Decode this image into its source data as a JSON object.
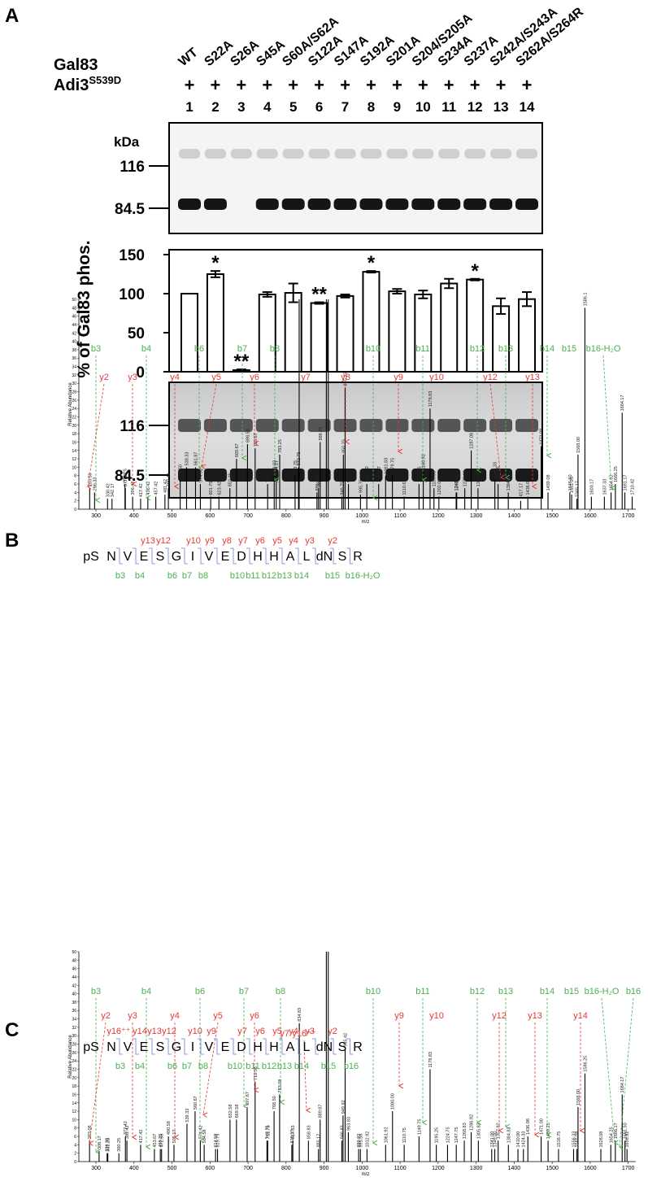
{
  "panel_a": {
    "label": "A",
    "gal83_label": "Gal83",
    "adi3_label": "Adi3",
    "adi3_superscript": "S539D",
    "mutants": [
      "WT",
      "S22A",
      "S26A",
      "S45A",
      "S60A/S62A",
      "S122A",
      "S147A",
      "S192A",
      "S201A",
      "S204/S205A",
      "S234A",
      "S237A",
      "S242A/S243A",
      "S262A/S264R"
    ],
    "adi3_presence": [
      "+",
      "+",
      "+",
      "+",
      "+",
      "+",
      "+",
      "+",
      "+",
      "+",
      "+",
      "+",
      "+",
      "+"
    ],
    "lane_numbers": [
      1,
      2,
      3,
      4,
      5,
      6,
      7,
      8,
      9,
      10,
      11,
      12,
      13,
      14
    ],
    "blot": {
      "unit": "kDa",
      "markers": [
        116,
        84.5
      ]
    },
    "gel": {
      "markers": [
        116,
        84.5
      ]
    }
  },
  "panel_b": {
    "label": "B",
    "sequence": [
      "pS",
      "N",
      "V",
      "E",
      "S",
      "G",
      "I",
      "V",
      "E",
      "D",
      "H",
      "H",
      "A",
      "L",
      "dN",
      "S",
      "R"
    ],
    "y_ions": [
      "y13",
      "y12",
      "y10",
      "y9",
      "y8",
      "y7",
      "y6",
      "y5",
      "y4",
      "y3",
      "y2"
    ],
    "b_ions": [
      "b3",
      "b4",
      "b6",
      "b7",
      "b8",
      "b10",
      "b11",
      "b12",
      "b13",
      "b14",
      "b15",
      "b16-H₂O"
    ]
  },
  "panel_c": {
    "label": "C",
    "sequence": [
      "pS",
      "N",
      "V",
      "E",
      "S",
      "G",
      "I",
      "V",
      "E",
      "D",
      "H",
      "H",
      "A",
      "L",
      "dN",
      "S",
      "R"
    ],
    "y_ions": [
      "y16⁺⁺",
      "y14",
      "y13",
      "y12",
      "y10",
      "y9",
      "y7",
      "y6",
      "y5",
      "y4",
      "y3",
      "y2"
    ],
    "b_ions": [
      "b3",
      "b4",
      "b6",
      "b7",
      "b8",
      "b10",
      "b11",
      "b12",
      "b13",
      "b14",
      "b15",
      "b16"
    ]
  },
  "chart_data": [
    {
      "type": "bar",
      "ylabel": "% of Gal83 phos.",
      "values": [
        100,
        125,
        2,
        99,
        101,
        88,
        97,
        128,
        103,
        99,
        113,
        118,
        84,
        93
      ],
      "errors": [
        0,
        4,
        1,
        3,
        12,
        1,
        2,
        1,
        3,
        5,
        6,
        1,
        10,
        9
      ],
      "annotations": [
        null,
        "*",
        "**",
        null,
        null,
        "**",
        null,
        "*",
        null,
        null,
        null,
        "*",
        null,
        null
      ],
      "ylim": [
        0,
        150
      ],
      "yticks": [
        0,
        50,
        100,
        150
      ],
      "color": "#ffffff",
      "edgecolor": "#000000"
    },
    {
      "type": "spectrum",
      "xlabel": "m/z",
      "ylabel": "Relative Abundance",
      "color": "#000000",
      "ion_colors": {
        "b": "#4caf50",
        "y": "#e53935"
      },
      "xlim": [
        255,
        1720
      ],
      "xticks": [
        300,
        400,
        500,
        600,
        700,
        800,
        900,
        1000,
        1100,
        1200,
        1300,
        1400,
        1500,
        1600,
        1700
      ],
      "ylim": [
        0,
        50
      ],
      "yticks": [
        0,
        2,
        4,
        6,
        8,
        10,
        12,
        14,
        16,
        18,
        20,
        22,
        24,
        26,
        28,
        30,
        32,
        34,
        36,
        38,
        40,
        42,
        44,
        46,
        48,
        50
      ],
      "x": [
        283.5,
        296.33,
        330.42,
        342.17,
        376.25,
        377.33,
        396.42,
        417.42,
        436.42,
        457.42,
        481.42,
        490.42,
        521.5,
        538.33,
        561.87,
        574.58,
        601.75,
        623.42,
        652.25,
        669.67,
        698.58,
        718.67,
        751.58,
        768.83,
        774.17,
        783.25,
        823.75,
        832.75,
        834.5,
        881.25,
        885.25,
        889.75,
        906,
        911,
        946.75,
        950.75,
        955.25,
        964.08,
        995.75,
        1012.42,
        1043.67,
        1061.83,
        1079.75,
        1110.67,
        1149.75,
        1160.92,
        1178.83,
        1189.08,
        1202,
        1247.42,
        1248.92,
        1270.08,
        1287.08,
        1304.92,
        1349.33,
        1357.75,
        1384.58,
        1417.17,
        1436,
        1471.08,
        1489.08,
        1546.5,
        1551.25,
        1565.17,
        1568,
        1586.1,
        1603.17,
        1637.33,
        1654.92,
        1666.25,
        1684.17,
        1691.17,
        1710.42
      ],
      "values": [
        5,
        4,
        2.5,
        2.5,
        6,
        5,
        3,
        2.5,
        3,
        3,
        3.5,
        5,
        7,
        10,
        10,
        6,
        3,
        3,
        5,
        12,
        15.5,
        14.5,
        6,
        8,
        8,
        13,
        8,
        10,
        50,
        4,
        5,
        16,
        50,
        50,
        3,
        13,
        29,
        6,
        3.5,
        6,
        6,
        8,
        8,
        3,
        6,
        9,
        24,
        5,
        3,
        4,
        4,
        5,
        14,
        5,
        7,
        6,
        4,
        2,
        3,
        15,
        4,
        4,
        3.5,
        2.5,
        13,
        48,
        3,
        3,
        4,
        6,
        23,
        4,
        3
      ],
      "x_labels": [
        "283.50",
        "296.33",
        "330.42",
        "342.17",
        "376.25",
        "377.33",
        "396.42",
        "417.42",
        "436.42",
        "457.42",
        "481.42",
        "490.42",
        "521.50",
        "538.33",
        "561.87",
        "574.58",
        "601.75",
        "623.42",
        "652.25",
        "669.67",
        "698.58",
        "718.67",
        "751.58",
        "768.83",
        "774.17",
        "783.25",
        "823.75",
        "832.75",
        null,
        "881.25",
        "885.25",
        "889.75",
        null,
        null,
        "946.75",
        "950.75",
        "955.25",
        "964.08",
        "995.75",
        "1012.42",
        "1043.67",
        "1061.83",
        "1079.75",
        "1110.67",
        "1149.75",
        "1160.92",
        "1178.83",
        "1189.08",
        "1202.00",
        "1247.42",
        "1248.92",
        "1270.08",
        "1287.08",
        "1304.92",
        "1349.33",
        "1357.75",
        "1384.58",
        "1417.17",
        "1436.00",
        "1471.08",
        "1489.08",
        "1546.50",
        "1551.25",
        "1565.17",
        "1568.00",
        "1586.1",
        "1603.17",
        "1637.33",
        "1654.92",
        "1666.25",
        "1684.17",
        "1691.17",
        "1710.42"
      ],
      "ions": [
        {
          "text": "b3",
          "kind": "b"
        },
        {
          "text": "y2",
          "kind": "y"
        },
        {
          "text": "b4",
          "kind": "b"
        },
        {
          "text": "y3",
          "kind": "y"
        },
        {
          "text": "b6",
          "kind": "b"
        },
        {
          "text": "y4",
          "kind": "y"
        },
        {
          "text": "y5",
          "kind": "y"
        },
        {
          "text": "b7",
          "kind": "b"
        },
        {
          "text": "y6",
          "kind": "y"
        },
        {
          "text": "b8",
          "kind": "b"
        },
        {
          "text": "y7",
          "kind": "y"
        },
        {
          "text": "y8",
          "kind": "y"
        },
        {
          "text": "b10",
          "kind": "b"
        },
        {
          "text": "y9",
          "kind": "y"
        },
        {
          "text": "b11",
          "kind": "b"
        },
        {
          "text": "y10",
          "kind": "y"
        },
        {
          "text": "b12",
          "kind": "b"
        },
        {
          "text": "y12",
          "kind": "y"
        },
        {
          "text": "b13",
          "kind": "b"
        },
        {
          "text": "y13",
          "kind": "y"
        },
        {
          "text": "b14",
          "kind": "b"
        },
        {
          "text": "b15",
          "kind": "b"
        },
        {
          "text": "b16-H₂O",
          "kind": "b"
        }
      ]
    },
    {
      "type": "spectrum",
      "xlabel": "m/z",
      "ylabel": "Relative Abundance",
      "color": "#000000",
      "ion_colors": {
        "b": "#4caf50",
        "y": "#e53935"
      },
      "xlim": [
        255,
        1720
      ],
      "xticks": [
        300,
        400,
        500,
        600,
        700,
        800,
        900,
        1000,
        1100,
        1200,
        1300,
        1400,
        1500,
        1600,
        1700
      ],
      "ylim": [
        0,
        50
      ],
      "yticks": [
        0,
        2,
        4,
        6,
        8,
        10,
        12,
        14,
        16,
        18,
        20,
        22,
        24,
        26,
        28,
        30,
        32,
        34,
        36,
        38,
        40,
        42,
        44,
        46,
        48,
        50
      ],
      "x": [
        283.08,
        308.17,
        329.33,
        331.25,
        360.25,
        377.42,
        381.42,
        417.42,
        453.67,
        469.25,
        472.58,
        490.58,
        505.17,
        539.33,
        560.67,
        574.42,
        584.58,
        614.58,
        619.75,
        652.58,
        669.58,
        697.67,
        718.58,
        749.75,
        751.75,
        768.5,
        783.08,
        815.17,
        817.83,
        834.83,
        858.83,
        885.17,
        889.67,
        906,
        911,
        946.83,
        949.92,
        955.42,
        963.83,
        990.92,
        995.58,
        1012.92,
        1061.92,
        1080,
        1110.75,
        1149.75,
        1178.83,
        1195.25,
        1224.75,
        1247.75,
        1268.83,
        1286.92,
        1305.83,
        1341,
        1349,
        1357.92,
        1384.83,
        1410,
        1424.33,
        1436.08,
        1471,
        1489.25,
        1516.75,
        1556.33,
        1565.08,
        1568,
        1586.25,
        1628.08,
        1654.25,
        1666.17,
        1684.17,
        1691.5,
        1696.92
      ],
      "values": [
        5,
        2.5,
        2,
        2,
        2,
        6,
        5,
        4,
        3,
        3,
        3,
        6,
        4,
        9,
        12,
        5,
        4,
        3,
        3,
        10,
        10,
        13,
        19,
        5,
        5,
        12,
        16,
        4,
        5,
        33,
        5,
        3,
        10,
        50,
        50,
        5,
        11,
        27,
        7,
        3,
        3,
        3,
        4,
        12,
        4,
        6,
        22,
        4,
        4,
        4,
        5,
        7,
        5,
        3,
        3,
        5,
        4,
        3,
        3,
        6,
        6,
        5,
        3,
        3,
        3,
        13,
        21,
        3,
        4,
        5,
        16,
        5,
        3
      ],
      "x_labels": [
        "283.08",
        "308.17",
        "329.33",
        "331.25",
        "360.25",
        "377.42",
        "381.42",
        "417.42",
        "453.67",
        "469.25",
        "472.58",
        "490.58",
        "505.17",
        "539.33",
        "560.67",
        "574.42",
        "584.58",
        "614.58",
        "619.75",
        "652.58",
        "669.58",
        "697.67",
        "718.58",
        "749.75",
        "751.75",
        "768.50",
        "783.08",
        "815.17",
        "817.83",
        "834.83",
        "858.83",
        "885.17",
        "889.67",
        null,
        null,
        "946.83",
        "949.92",
        "955.42",
        "963.83",
        "990.92",
        "995.58",
        "1012.92",
        "1061.92",
        "1080.00",
        "1110.75",
        "1149.75",
        "1178.83",
        "1195.25",
        "1224.75",
        "1247.75",
        "1268.83",
        "1286.92",
        "1305.83",
        "1341.00",
        "1349.00",
        "1357.92",
        "1384.83",
        "1410.00",
        "1424.33",
        "1436.08",
        "1471.00",
        "1489.25",
        "1516.75",
        "1556.33",
        "1565.08",
        "1568.00",
        "1586.25",
        "1628.08",
        "1654.25",
        "1666.17",
        "1684.17",
        "1691.50",
        "1696.92"
      ],
      "ions": [
        {
          "text": "b3",
          "kind": "b"
        },
        {
          "text": "y2",
          "kind": "y"
        },
        {
          "text": "b4",
          "kind": "b"
        },
        {
          "text": "y3",
          "kind": "y"
        },
        {
          "text": "y4",
          "kind": "y"
        },
        {
          "text": "b6",
          "kind": "b"
        },
        {
          "text": "y5",
          "kind": "y"
        },
        {
          "text": "b7",
          "kind": "b"
        },
        {
          "text": "y6",
          "kind": "y"
        },
        {
          "text": "b8",
          "kind": "b"
        },
        {
          "text": "y7",
          "kind": "y"
        },
        {
          "text": "y16⁺⁺",
          "kind": "y"
        },
        {
          "text": "b10",
          "kind": "b"
        },
        {
          "text": "y9",
          "kind": "y"
        },
        {
          "text": "b11",
          "kind": "b"
        },
        {
          "text": "y10",
          "kind": "y"
        },
        {
          "text": "b12",
          "kind": "b"
        },
        {
          "text": "b13",
          "kind": "b"
        },
        {
          "text": "y12",
          "kind": "y"
        },
        {
          "text": "y13",
          "kind": "y"
        },
        {
          "text": "b14",
          "kind": "b"
        },
        {
          "text": "y14",
          "kind": "y"
        },
        {
          "text": "b15",
          "kind": "b"
        },
        {
          "text": "b16-H₂O",
          "kind": "b"
        },
        {
          "text": "b16",
          "kind": "b"
        }
      ]
    }
  ]
}
